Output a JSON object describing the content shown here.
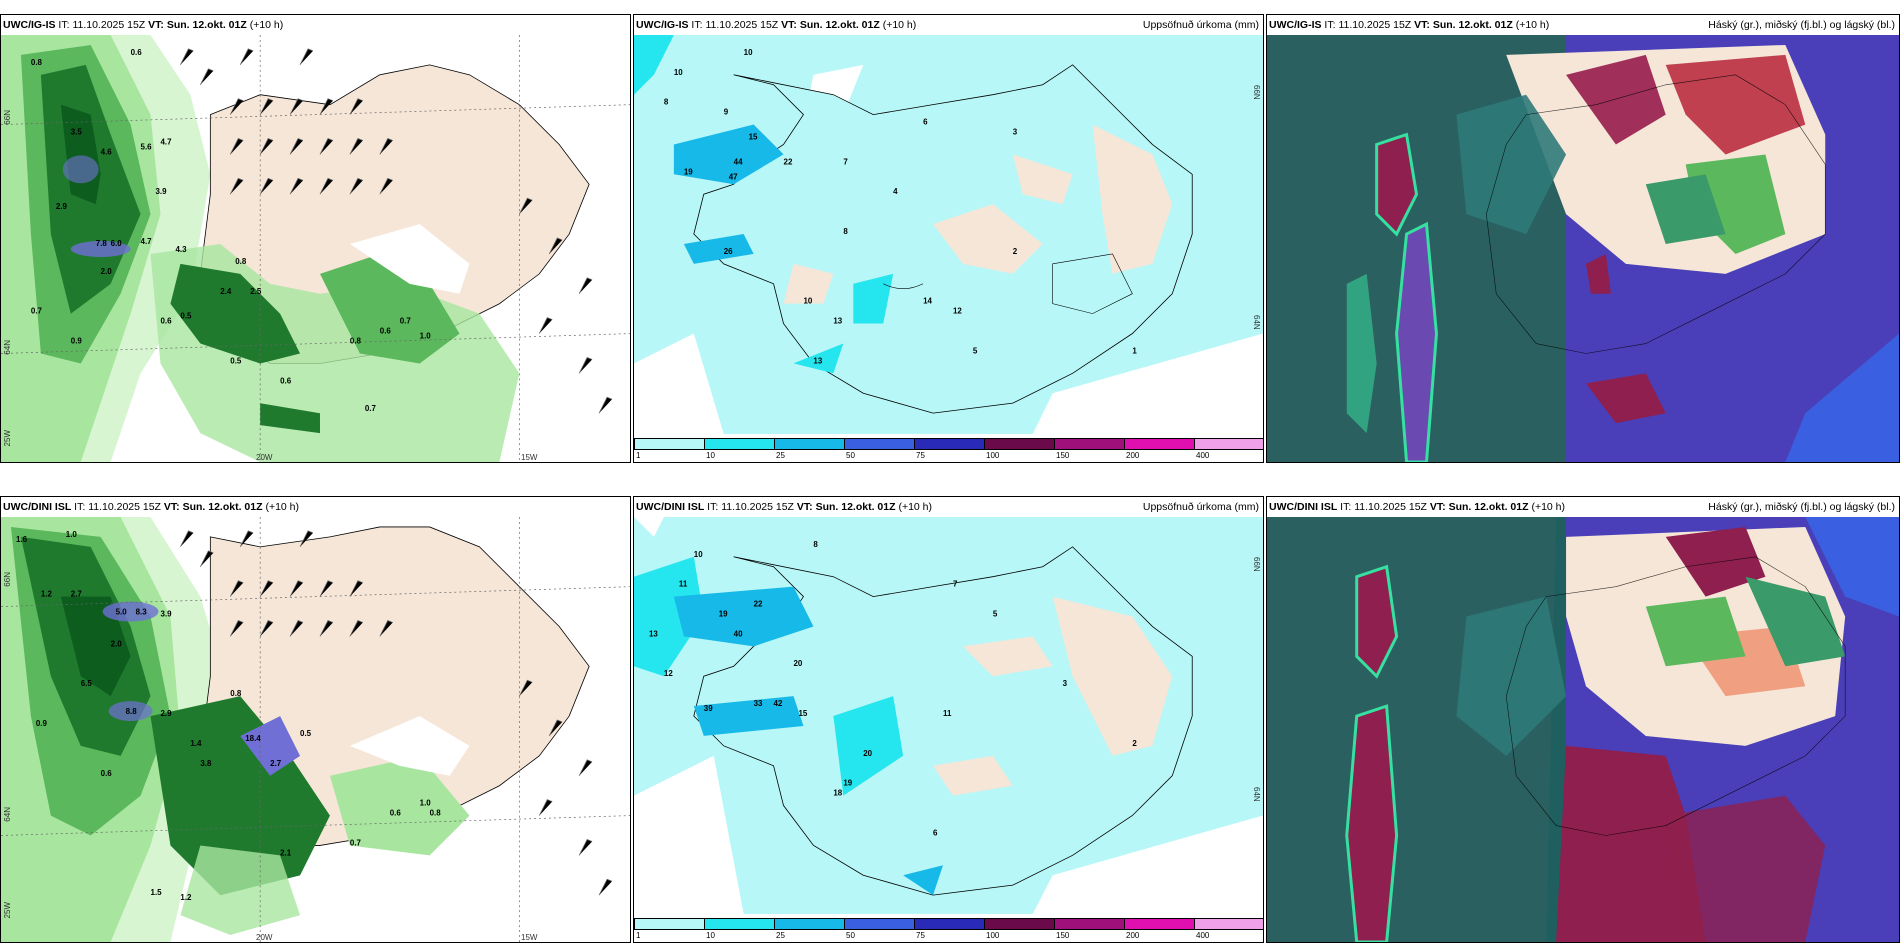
{
  "colors": {
    "land": "#f5e6d8",
    "sea_light": "#b7f7f7",
    "cyan": "#25e6ee",
    "blue_mid": "#17b9e8",
    "greens": [
      "#d8f5d2",
      "#a8e6a0",
      "#5cb85c",
      "#1f7a2e",
      "#0d5d1f"
    ],
    "cloud_high": "#8f1f4e",
    "cloud_mid": "#4a3fb8",
    "cloud_low": "#1f5f5f",
    "cloud_edge": "#36e0a0"
  },
  "panels": {
    "top_left": {
      "model": "UWC/IG-IS",
      "it_label": "IT:",
      "it": "11.10.2025 15Z",
      "vt_label": "VT:",
      "vt": "Sun. 12.okt. 01Z",
      "lead": "(+10 h)",
      "lon_labels": [
        "20W",
        "15W"
      ],
      "lat_labels": [
        "66N",
        "64N",
        "25W"
      ],
      "values": [
        "0.8",
        "0.6",
        "3.5",
        "4.6",
        "5.6",
        "4.7",
        "3.9",
        "2.9",
        "7.8",
        "6.0",
        "4.7",
        "4.3",
        "2.0",
        "0.8",
        "2.4",
        "2.5",
        "0.6",
        "0.5",
        "0.9",
        "0.7",
        "0.6",
        "0.8",
        "0.6",
        "0.7",
        "1.0",
        "0.5",
        "0.7"
      ]
    },
    "top_mid": {
      "model": "UWC/IG-IS",
      "it_label": "IT:",
      "it": "11.10.2025 15Z",
      "vt_label": "VT:",
      "vt": "Sun. 12.okt. 01Z",
      "lead": "(+10 h)",
      "title_right": "Uppsöfnuð úrkoma (mm)",
      "lat_labels": [
        "66N",
        "64N"
      ],
      "values": [
        "10",
        "8",
        "9",
        "15",
        "44",
        "47",
        "22",
        "19",
        "26",
        "7",
        "4",
        "8",
        "10",
        "13",
        "6",
        "3",
        "2",
        "5",
        "13",
        "1",
        "14",
        "12"
      ]
    },
    "top_right": {
      "model": "UWC/IG-IS",
      "it_label": "IT:",
      "it": "11.10.2025 15Z",
      "vt_label": "VT:",
      "vt": "Sun. 12.okt. 01Z",
      "lead": "(+10 h)",
      "title_right": "Háský (gr.), miðský (fj.bl.) og lágský (bl.)"
    },
    "bottom_left": {
      "model": "UWC/DINI ISL",
      "it_label": "IT:",
      "it": "11.10.2025 15Z",
      "vt_label": "VT:",
      "vt": "Sun. 12.okt. 01Z",
      "lead": "(+10 h)",
      "lon_labels": [
        "20W",
        "15W"
      ],
      "lat_labels": [
        "66N",
        "64N",
        "25W"
      ],
      "values": [
        "1.6",
        "1.0",
        "1.2",
        "2.7",
        "5.0",
        "8.3",
        "3.9",
        "2.0",
        "0.9",
        "6.5",
        "8.8",
        "2.9",
        "0.6",
        "0.8",
        "1.4",
        "3.8",
        "18.4",
        "2.7",
        "2.1",
        "1.5",
        "1.2",
        "0.5",
        "0.7",
        "0.6",
        "1.0",
        "0.8"
      ]
    },
    "bottom_mid": {
      "model": "UWC/DINI ISL",
      "it_label": "IT:",
      "it": "11.10.2025 15Z",
      "vt_label": "VT:",
      "vt": "Sun. 12.okt. 01Z",
      "lead": "(+10 h)",
      "title_right": "Uppsöfnuð úrkoma (mm)",
      "lat_labels": [
        "66N",
        "64N"
      ],
      "values": [
        "10",
        "11",
        "19",
        "22",
        "40",
        "13",
        "12",
        "20",
        "39",
        "33",
        "42",
        "15",
        "11",
        "20",
        "18",
        "19",
        "8",
        "7",
        "5",
        "3",
        "2",
        "6"
      ]
    },
    "bottom_right": {
      "model": "UWC/DINI ISL",
      "it_label": "IT:",
      "it": "11.10.2025 15Z",
      "vt_label": "VT:",
      "vt": "Sun. 12.okt. 01Z",
      "lead": "(+10 h)",
      "title_right": "Háský (gr.), miðský (fj.bl.) og lágský (bl.)"
    }
  },
  "colorbar": {
    "labels": [
      "1",
      "10",
      "25",
      "50",
      "75",
      "100",
      "150",
      "200",
      "400"
    ],
    "colors": [
      "#b7f7f7",
      "#25e6ee",
      "#17b9e8",
      "#3a5fe0",
      "#2a2ab8",
      "#6a0a4a",
      "#a0107a",
      "#e010b0",
      "#f0a0e8"
    ]
  }
}
